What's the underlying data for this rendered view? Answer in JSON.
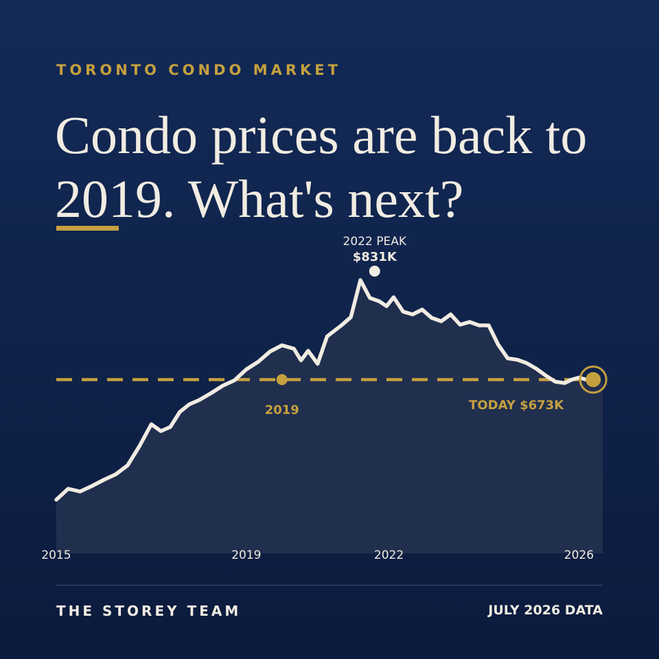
{
  "kicker": "TORONTO CONDO MARKET",
  "headline": "Condo prices are back to 2019. What's next?",
  "footer": {
    "brand": "THE STOREY TEAM",
    "data_note": "JULY 2026 DATA"
  },
  "colors": {
    "background": "#132a57",
    "accent": "#c5a03f",
    "line": "#f1ece2",
    "area": "#23304f"
  },
  "chart_data": {
    "type": "line",
    "title": "",
    "xlabel": "",
    "ylabel": "",
    "x_ticks": [
      "2015",
      "2019",
      "2022",
      "2026"
    ],
    "xlim": [
      2015.0,
      2026.5
    ],
    "ylim": [
      420,
      900
    ],
    "grid": false,
    "series": [
      {
        "x": [
          2015.0,
          2015.25,
          2015.5,
          2015.75,
          2016.0,
          2016.25,
          2016.5,
          2016.75,
          2017.0,
          2017.2,
          2017.4,
          2017.6,
          2017.8,
          2018.0,
          2018.25,
          2018.5,
          2018.75,
          2019.0,
          2019.25,
          2019.5,
          2019.75,
          2020.0,
          2020.15,
          2020.3,
          2020.5,
          2020.7,
          2020.85,
          2021.0,
          2021.2,
          2021.4,
          2021.6,
          2021.8,
          2021.95,
          2022.1,
          2022.3,
          2022.5,
          2022.7,
          2022.9,
          2023.1,
          2023.3,
          2023.5,
          2023.7,
          2023.9,
          2024.1,
          2024.3,
          2024.5,
          2024.7,
          2024.9,
          2025.1,
          2025.3,
          2025.5,
          2025.7,
          2025.85,
          2026.0,
          2026.15,
          2026.3
        ],
        "values": [
          498,
          514,
          510,
          518,
          527,
          535,
          548,
          576,
          608,
          598,
          604,
          626,
          637,
          643,
          653,
          664,
          672,
          688,
          699,
          714,
          723,
          718,
          701,
          715,
          696,
          736,
          744,
          752,
          764,
          818,
          792,
          787,
          780,
          793,
          772,
          768,
          775,
          763,
          758,
          768,
          753,
          757,
          752,
          752,
          724,
          704,
          702,
          697,
          689,
          679,
          670,
          668,
          673,
          676,
          673,
          673
        ]
      }
    ],
    "reference_line": {
      "value": 673
    },
    "annotations": [
      {
        "label": "2022 PEAK",
        "value_label": "$831K",
        "x": 2021.7,
        "y": 831
      },
      {
        "label": "2019",
        "x": 2019.75,
        "y": 673
      },
      {
        "label": "TODAY  $673K",
        "x": 2026.3,
        "y": 673
      }
    ]
  }
}
